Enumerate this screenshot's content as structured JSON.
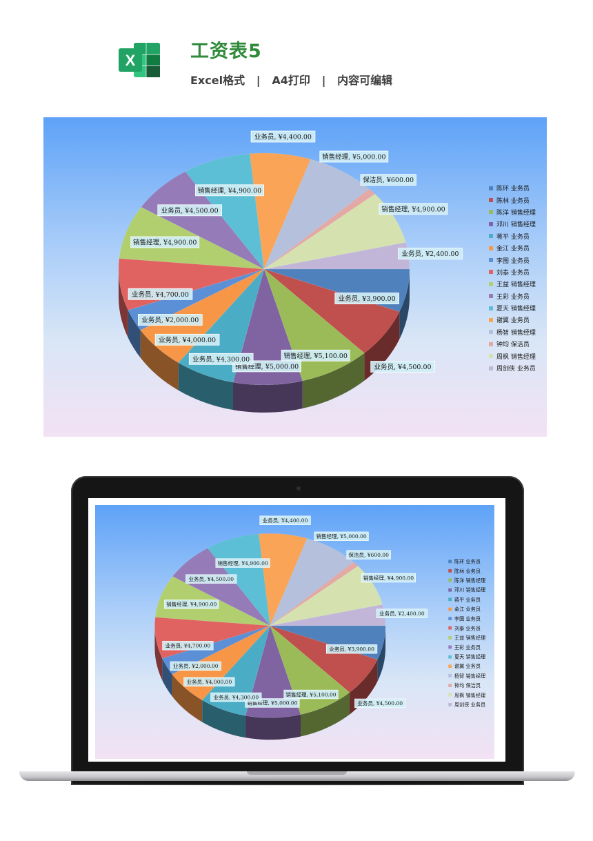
{
  "header": {
    "title": "工资表5",
    "subtitle": "Excel格式   |   A4打印   |   内容可编辑",
    "logo_letter": "X",
    "logo_color": "#21a366"
  },
  "chart_data": {
    "type": "pie",
    "title": "",
    "legend_position": "right",
    "currency_symbol": "¥",
    "slices": [
      {
        "name": "陈环 业务员",
        "value": 3900,
        "color": "#4f81bd",
        "label": "业务员, ¥3,900.00"
      },
      {
        "name": "陈林 业务员",
        "value": 4500,
        "color": "#c0504d",
        "label": "业务员, ¥4,500.00"
      },
      {
        "name": "陈洋 销售经理",
        "value": 5100,
        "color": "#9bbb59",
        "label": "销售经理, ¥5,100.00"
      },
      {
        "name": "邓川 销售经理",
        "value": 5000,
        "color": "#8064a2",
        "label": "销售经理, ¥5,000.00"
      },
      {
        "name": "蒋平 业务员",
        "value": 4300,
        "color": "#4bacc6",
        "label": "业务员, ¥4,300.00"
      },
      {
        "name": "金江 业务员",
        "value": 4000,
        "color": "#f79646",
        "label": "业务员, ¥4,000.00"
      },
      {
        "name": "李图 业务员",
        "value": 2000,
        "color": "#5b8fd6",
        "label": "业务员, ¥2,000.00"
      },
      {
        "name": "刘泰 业务员",
        "value": 4700,
        "color": "#e06361",
        "label": "业务员, ¥4,700.00"
      },
      {
        "name": "王益 销售经理",
        "value": 4900,
        "color": "#b2cf6f",
        "label": "销售经理, ¥4,900.00"
      },
      {
        "name": "王彩 业务员",
        "value": 4500,
        "color": "#957cb8",
        "label": "业务员, ¥4,500.00"
      },
      {
        "name": "夏天 销售经理",
        "value": 4900,
        "color": "#5cbfd5",
        "label": "销售经理, ¥4,900.00"
      },
      {
        "name": "谢翼 业务员",
        "value": 4400,
        "color": "#f9a456",
        "label": "业务员, ¥4,400.00"
      },
      {
        "name": "杨智 销售经理",
        "value": 5000,
        "color": "#b4c0dc",
        "label": "销售经理, ¥5,000.00"
      },
      {
        "name": "钟均 保洁员",
        "value": 600,
        "color": "#e4a8a5",
        "label": "保洁员, ¥600.00"
      },
      {
        "name": "周枫 销售经理",
        "value": 4900,
        "color": "#d5e2b0",
        "label": "销售经理, ¥4,900.00"
      },
      {
        "name": "周剑侠 业务员",
        "value": 2400,
        "color": "#c2b6d8",
        "label": "业务员, ¥2,400.00"
      }
    ]
  }
}
